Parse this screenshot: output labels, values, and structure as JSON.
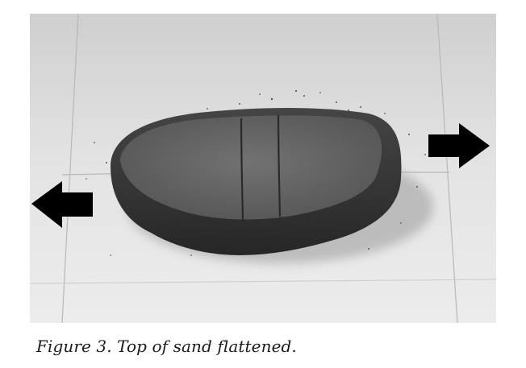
{
  "figure": {
    "caption": "Figure 3. Top of sand flattened.",
    "photo": {
      "style": "grayscale",
      "subject": "flattened sand pile with two parallel grooves on tiled floor",
      "arrows": [
        {
          "icon": "arrow-left-icon",
          "color": "#000000"
        },
        {
          "icon": "arrow-right-icon",
          "color": "#000000"
        }
      ]
    }
  }
}
